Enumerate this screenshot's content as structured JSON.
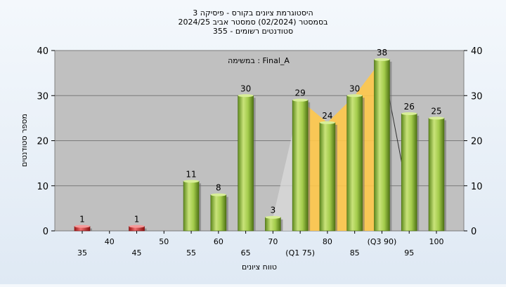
{
  "chart_data": {
    "type": "bar",
    "title_lines": [
      "היסטוגרמת ציונים בקורס - פיסיקה 3",
      "בסמסטר  (02/2024)  סמסטר אביב 2024/25",
      "סטודנטים רשומים - 355"
    ],
    "xlabel": "טווח ציונים",
    "ylabel": "מספר סטודנטים",
    "annotation": "במשימה : Final_A",
    "ylim": [
      0,
      40
    ],
    "yticks": [
      0,
      10,
      20,
      30,
      40
    ],
    "grid": true,
    "x_ticks": [
      {
        "x": 35,
        "label": "35"
      },
      {
        "x": 40,
        "label": "40"
      },
      {
        "x": 45,
        "label": "45"
      },
      {
        "x": 50,
        "label": "50"
      },
      {
        "x": 55,
        "label": "55"
      },
      {
        "x": 60,
        "label": "60"
      },
      {
        "x": 65,
        "label": "65"
      },
      {
        "x": 70,
        "label": "70"
      },
      {
        "x": 75,
        "label": "(Q1 75)"
      },
      {
        "x": 80,
        "label": "80"
      },
      {
        "x": 85,
        "label": "85"
      },
      {
        "x": 90,
        "label": "(Q3 90)"
      },
      {
        "x": 95,
        "label": "95"
      },
      {
        "x": 100,
        "label": "100"
      }
    ],
    "bars": [
      {
        "x": 35,
        "value": 1,
        "color": "red"
      },
      {
        "x": 45,
        "value": 1,
        "color": "red"
      },
      {
        "x": 55,
        "value": 11,
        "color": "green"
      },
      {
        "x": 60,
        "value": 8,
        "color": "green"
      },
      {
        "x": 65,
        "value": 30,
        "color": "green"
      },
      {
        "x": 70,
        "value": 3,
        "color": "green"
      },
      {
        "x": 75,
        "value": 29,
        "color": "green"
      },
      {
        "x": 80,
        "value": 24,
        "color": "green"
      },
      {
        "x": 85,
        "value": 30,
        "color": "green"
      },
      {
        "x": 90,
        "value": 38,
        "color": "green"
      },
      {
        "x": 95,
        "value": 26,
        "color": "green"
      },
      {
        "x": 100,
        "value": 25,
        "color": "green"
      }
    ],
    "quartile_band": {
      "from": 75,
      "to": 90,
      "color": "#ffc84a"
    },
    "colors": {
      "plot_bg": "#c0c0c0",
      "green": "#8fbf3a",
      "red": "#d93232",
      "page_bg": "#e8f0f8"
    }
  }
}
